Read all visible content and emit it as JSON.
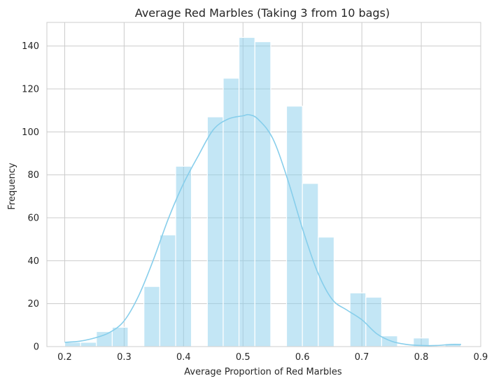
{
  "chart_data": {
    "type": "histogram",
    "title": "Average Red Marbles (Taking 3 from 10 bags)",
    "xlabel": "Average Proportion of Red Marbles",
    "ylabel": "Frequency",
    "xlim": [
      0.17,
      0.9
    ],
    "ylim": [
      0,
      151
    ],
    "xticks": [
      0.2,
      0.3,
      0.4,
      0.5,
      0.6,
      0.7,
      0.8,
      0.9
    ],
    "yticks": [
      0,
      20,
      40,
      60,
      80,
      100,
      120,
      140
    ],
    "grid": true,
    "bar_color": "#87ceeb",
    "bins": [
      {
        "x0": 0.2,
        "x1": 0.2267,
        "count": 2
      },
      {
        "x0": 0.2267,
        "x1": 0.2533,
        "count": 2
      },
      {
        "x0": 0.2533,
        "x1": 0.28,
        "count": 7
      },
      {
        "x0": 0.28,
        "x1": 0.3067,
        "count": 9
      },
      {
        "x0": 0.3067,
        "x1": 0.3333,
        "count": 0
      },
      {
        "x0": 0.3333,
        "x1": 0.36,
        "count": 28
      },
      {
        "x0": 0.36,
        "x1": 0.3867,
        "count": 52
      },
      {
        "x0": 0.3867,
        "x1": 0.4133,
        "count": 84
      },
      {
        "x0": 0.4133,
        "x1": 0.44,
        "count": 0
      },
      {
        "x0": 0.44,
        "x1": 0.4667,
        "count": 107
      },
      {
        "x0": 0.4667,
        "x1": 0.4933,
        "count": 125
      },
      {
        "x0": 0.4933,
        "x1": 0.52,
        "count": 144
      },
      {
        "x0": 0.52,
        "x1": 0.5467,
        "count": 142
      },
      {
        "x0": 0.5467,
        "x1": 0.5733,
        "count": 0
      },
      {
        "x0": 0.5733,
        "x1": 0.6,
        "count": 112
      },
      {
        "x0": 0.6,
        "x1": 0.6267,
        "count": 76
      },
      {
        "x0": 0.6267,
        "x1": 0.6533,
        "count": 51
      },
      {
        "x0": 0.6533,
        "x1": 0.68,
        "count": 0
      },
      {
        "x0": 0.68,
        "x1": 0.7067,
        "count": 25
      },
      {
        "x0": 0.7067,
        "x1": 0.7333,
        "count": 23
      },
      {
        "x0": 0.7333,
        "x1": 0.76,
        "count": 5
      },
      {
        "x0": 0.76,
        "x1": 0.7867,
        "count": 0
      },
      {
        "x0": 0.7867,
        "x1": 0.8133,
        "count": 4
      },
      {
        "x0": 0.8133,
        "x1": 0.84,
        "count": 0
      },
      {
        "x0": 0.84,
        "x1": 0.8667,
        "count": 1
      }
    ],
    "kde": {
      "name": "KDE",
      "x": [
        0.2,
        0.225,
        0.25,
        0.275,
        0.3,
        0.325,
        0.35,
        0.375,
        0.4,
        0.425,
        0.45,
        0.475,
        0.5,
        0.51,
        0.525,
        0.55,
        0.575,
        0.6,
        0.625,
        0.65,
        0.675,
        0.7,
        0.725,
        0.75,
        0.775,
        0.8,
        0.825,
        0.85,
        0.867
      ],
      "y": [
        2,
        2.5,
        4,
        6.5,
        12,
        24,
        41,
        60,
        76,
        89,
        101,
        106,
        107.5,
        108,
        106,
        97,
        78,
        55,
        35,
        22,
        17,
        12.5,
        6,
        2.5,
        1,
        0.5,
        0.5,
        1,
        1
      ]
    }
  }
}
